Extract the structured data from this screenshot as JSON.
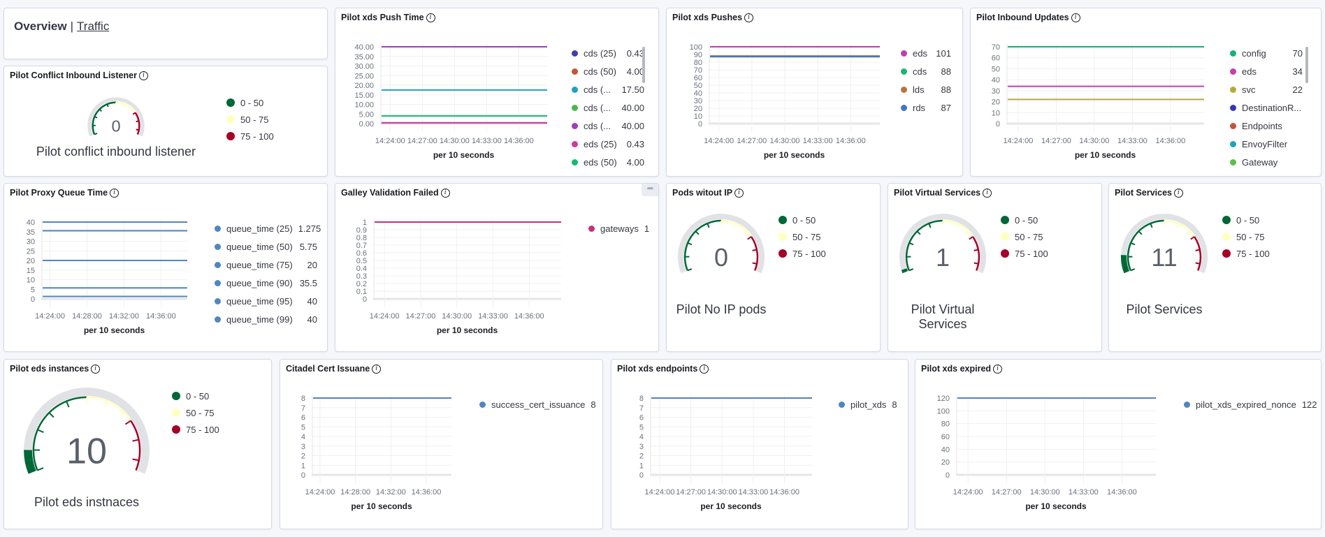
{
  "nav": {
    "overview": "Overview",
    "separator": "|",
    "traffic": "Traffic"
  },
  "gauges": [
    {
      "title": "Pilot Conflict Inbound Listener",
      "value": "0",
      "label": "Pilot conflict inbound listener",
      "fraction": 0.0
    },
    {
      "title": "Pods witout IP",
      "value": "0",
      "label": "Pilot No IP pods",
      "fraction": 0.0
    },
    {
      "title": "Pilot Virtual Services",
      "value": "1",
      "label": "Pilot Virtual Services",
      "fraction": 0.01
    },
    {
      "title": "Pilot Services",
      "value": "11",
      "label": "Pilot Services",
      "fraction": 0.11
    },
    {
      "title": "Pilot eds instances",
      "value": "10",
      "label": "Pilot eds instnaces",
      "fraction": 0.1
    }
  ],
  "gauge_ranges": [
    {
      "label": "0 - 50",
      "color": "#006837",
      "from": 0,
      "to": 50
    },
    {
      "label": "50 - 75",
      "color": "#ffffbf",
      "from": 50,
      "to": 75
    },
    {
      "label": "75 - 100",
      "color": "#a50026",
      "from": 75,
      "to": 100
    }
  ],
  "gauge_track_color": "#e0e2e6",
  "menu_icon": "ellipsis-icon",
  "info_icon": "info-icon",
  "info_glyph": "i",
  "menu_glyph": "▫▫▫",
  "chart_data": [
    {
      "type": "line",
      "title": "Pilot xds Push Time",
      "xlabel": "per 10 seconds",
      "x_ticks": [
        "14:24:00",
        "14:27:00",
        "14:30:00",
        "14:33:00",
        "14:36:00"
      ],
      "ylim": [
        0,
        40
      ],
      "y_ticks": [
        "0.00",
        "5.00",
        "10.00",
        "15.00",
        "20.00",
        "25.00",
        "30.00",
        "35.00",
        "40.00"
      ],
      "grid": true,
      "legend": "right",
      "series": [
        {
          "name": "cds (25)",
          "value": 0.43,
          "display": "0.43",
          "color": "#3f3fb5"
        },
        {
          "name": "cds (50)",
          "value": 4.0,
          "display": "4.00",
          "color": "#c4553a"
        },
        {
          "name": "cds (...",
          "value": 17.5,
          "display": "17.50",
          "color": "#21a0bf"
        },
        {
          "name": "cds (...",
          "value": 40.0,
          "display": "40.00",
          "color": "#4ab84a"
        },
        {
          "name": "cds (...",
          "value": 40.0,
          "display": "40.00",
          "color": "#a03cc0"
        },
        {
          "name": "eds (25)",
          "value": 0.43,
          "display": "0.43",
          "color": "#d03c9a"
        },
        {
          "name": "eds (50)",
          "value": 4.0,
          "display": "4.00",
          "color": "#16b870"
        }
      ]
    },
    {
      "type": "line",
      "title": "Pilot xds Pushes",
      "xlabel": "per 10 seconds",
      "x_ticks": [
        "14:24:00",
        "14:27:00",
        "14:30:00",
        "14:33:00",
        "14:36:00"
      ],
      "ylim": [
        0,
        100
      ],
      "y_ticks": [
        "0",
        "10",
        "20",
        "30",
        "40",
        "50",
        "60",
        "70",
        "80",
        "90",
        "100"
      ],
      "grid": true,
      "legend": "right",
      "series": [
        {
          "name": "eds",
          "value": 101,
          "display": "101",
          "color": "#c33bb0"
        },
        {
          "name": "cds",
          "value": 88,
          "display": "88",
          "color": "#16b870"
        },
        {
          "name": "lds",
          "value": 88,
          "display": "88",
          "color": "#b8763f"
        },
        {
          "name": "rds",
          "value": 87,
          "display": "87",
          "color": "#3f77c0"
        }
      ]
    },
    {
      "type": "line",
      "title": "Pilot Inbound Updates",
      "xlabel": "per 10 seconds",
      "x_ticks": [
        "14:24:00",
        "14:27:00",
        "14:30:00",
        "14:33:00",
        "14:36:00"
      ],
      "ylim": [
        0,
        70
      ],
      "y_ticks": [
        "0",
        "10",
        "20",
        "30",
        "40",
        "50",
        "60",
        "70"
      ],
      "grid": true,
      "legend": "right",
      "series": [
        {
          "name": "config",
          "value": 70,
          "display": "70",
          "color": "#16b07a"
        },
        {
          "name": "eds",
          "value": 34,
          "display": "34",
          "color": "#c93bb0"
        },
        {
          "name": "svc",
          "value": 22,
          "display": "22",
          "color": "#b6a93a"
        },
        {
          "name": "DestinationR...",
          "value": null,
          "display": "",
          "color": "#3438b0"
        },
        {
          "name": "Endpoints",
          "value": null,
          "display": "",
          "color": "#c9503a"
        },
        {
          "name": "EnvoyFilter",
          "value": null,
          "display": "",
          "color": "#1fa3b8"
        },
        {
          "name": "Gateway",
          "value": null,
          "display": "",
          "color": "#5cbe4b"
        }
      ]
    },
    {
      "type": "line",
      "title": "Pilot Proxy Queue Time",
      "xlabel": "per 10 seconds",
      "x_ticks": [
        "14:24:00",
        "14:28:00",
        "14:32:00",
        "14:36:00"
      ],
      "ylim": [
        0,
        40
      ],
      "y_ticks": [
        "0",
        "5",
        "10",
        "15",
        "20",
        "25",
        "30",
        "35",
        "40"
      ],
      "grid": true,
      "legend": "right",
      "series": [
        {
          "name": "queue_time (25)",
          "value": 1.275,
          "display": "1.275",
          "color": "#4f86c0"
        },
        {
          "name": "queue_time (50)",
          "value": 5.75,
          "display": "5.75",
          "color": "#4f86c0"
        },
        {
          "name": "queue_time (75)",
          "value": 20,
          "display": "20",
          "color": "#4f86c0"
        },
        {
          "name": "queue_time (90)",
          "value": 35.5,
          "display": "35.5",
          "color": "#4f86c0"
        },
        {
          "name": "queue_time (95)",
          "value": 40,
          "display": "40",
          "color": "#4f86c0"
        },
        {
          "name": "queue_time (99)",
          "value": 40,
          "display": "40",
          "color": "#4f86c0"
        }
      ]
    },
    {
      "type": "line",
      "title": "Galley Validation Failed",
      "xlabel": "per 10 seconds",
      "x_ticks": [
        "14:24:00",
        "14:27:00",
        "14:30:00",
        "14:33:00",
        "14:36:00"
      ],
      "ylim": [
        0,
        1
      ],
      "y_ticks": [
        "0",
        "0.1",
        "0.2",
        "0.3",
        "0.4",
        "0.5",
        "0.6",
        "0.7",
        "0.8",
        "0.9",
        "1"
      ],
      "grid": true,
      "legend": "right",
      "series": [
        {
          "name": "gateways",
          "value": 1,
          "display": "1",
          "color": "#c7317a"
        }
      ]
    },
    {
      "type": "line",
      "title": "Citadel Cert Issuane",
      "xlabel": "per 10 seconds",
      "x_ticks": [
        "14:24:00",
        "14:28:00",
        "14:32:00",
        "14:36:00"
      ],
      "ylim": [
        0,
        8
      ],
      "y_ticks": [
        "0",
        "1",
        "2",
        "3",
        "4",
        "5",
        "6",
        "7",
        "8"
      ],
      "grid": true,
      "legend": "right",
      "series": [
        {
          "name": "success_cert_issuance",
          "value": 8,
          "display": "8",
          "color": "#4f86c0"
        }
      ]
    },
    {
      "type": "line",
      "title": "Pilot xds endpoints",
      "xlabel": "per 10 seconds",
      "x_ticks": [
        "14:24:00",
        "14:27:00",
        "14:30:00",
        "14:33:00",
        "14:36:00"
      ],
      "ylim": [
        0,
        8
      ],
      "y_ticks": [
        "0",
        "1",
        "2",
        "3",
        "4",
        "5",
        "6",
        "7",
        "8"
      ],
      "grid": true,
      "legend": "right",
      "series": [
        {
          "name": "pilot_xds",
          "value": 8,
          "display": "8",
          "color": "#4f86c0"
        }
      ]
    },
    {
      "type": "line",
      "title": "Pilot xds expired",
      "xlabel": "per 10 seconds",
      "x_ticks": [
        "14:24:00",
        "14:27:00",
        "14:30:00",
        "14:33:00",
        "14:36:00"
      ],
      "ylim": [
        0,
        120
      ],
      "y_ticks": [
        "0",
        "20",
        "40",
        "60",
        "80",
        "100",
        "120"
      ],
      "grid": true,
      "legend": "right",
      "series": [
        {
          "name": "pilot_xds_expired_nonce",
          "value": 122,
          "display": "122",
          "color": "#4f86c0"
        }
      ]
    }
  ]
}
